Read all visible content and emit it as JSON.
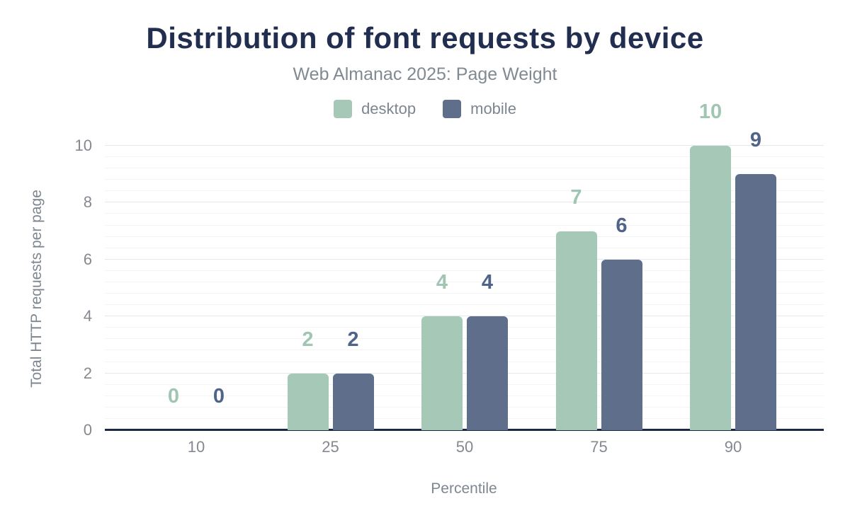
{
  "title": "Distribution of font requests by device",
  "subtitle": "Web Almanac 2025: Page Weight",
  "legend": {
    "items": [
      {
        "label": "desktop",
        "color": "#a6c9b7"
      },
      {
        "label": "mobile",
        "color": "#5e6e8b"
      }
    ]
  },
  "chart_data": {
    "type": "bar",
    "categories": [
      "10",
      "25",
      "50",
      "75",
      "90"
    ],
    "series": [
      {
        "name": "desktop",
        "values": [
          0,
          2,
          4,
          7,
          10
        ],
        "color": "#a6c9b7",
        "label_color": "#9fc6b2"
      },
      {
        "name": "mobile",
        "values": [
          0,
          2,
          4,
          6,
          9
        ],
        "color": "#5e6e8b",
        "label_color": "#50648a"
      }
    ],
    "title": "Distribution of font requests by device",
    "subtitle": "Web Almanac 2025: Page Weight",
    "xlabel": "Percentile",
    "ylabel": "Total HTTP requests per page",
    "ylim": [
      0,
      10
    ],
    "yticks": [
      0,
      2,
      4,
      6,
      8,
      10
    ],
    "grid": {
      "minor_step": 0.4,
      "major_step": 2,
      "on": true
    },
    "legend_position": "top",
    "value_labels": true
  },
  "colors": {
    "title": "#222e4f",
    "subtitle": "#818a92",
    "axis_text": "#85898f",
    "axis_title": "#7e8791",
    "baseline": "#1c2849",
    "grid_minor": "#f4f4f5",
    "grid_major": "#e6e7e9",
    "background": "#ffffff"
  }
}
